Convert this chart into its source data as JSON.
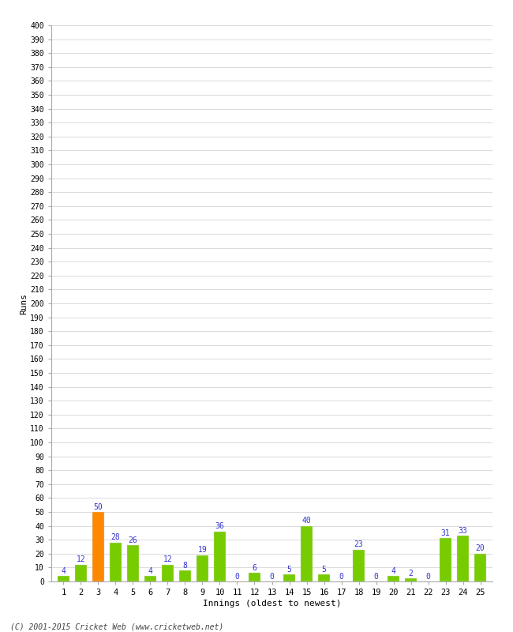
{
  "innings": [
    1,
    2,
    3,
    4,
    5,
    6,
    7,
    8,
    9,
    10,
    11,
    12,
    13,
    14,
    15,
    16,
    17,
    18,
    19,
    20,
    21,
    22,
    23,
    24,
    25
  ],
  "runs": [
    4,
    12,
    50,
    28,
    26,
    4,
    12,
    8,
    19,
    36,
    0,
    6,
    0,
    5,
    40,
    5,
    0,
    23,
    0,
    4,
    2,
    0,
    31,
    33,
    20
  ],
  "bar_colors": [
    "#77cc00",
    "#77cc00",
    "#ff8800",
    "#77cc00",
    "#77cc00",
    "#77cc00",
    "#77cc00",
    "#77cc00",
    "#77cc00",
    "#77cc00",
    "#77cc00",
    "#77cc00",
    "#77cc00",
    "#77cc00",
    "#77cc00",
    "#77cc00",
    "#77cc00",
    "#77cc00",
    "#77cc00",
    "#77cc00",
    "#77cc00",
    "#77cc00",
    "#77cc00",
    "#77cc00",
    "#77cc00"
  ],
  "ylabel": "Runs",
  "xlabel": "Innings (oldest to newest)",
  "ytick_min": 0,
  "ytick_max": 400,
  "ytick_step": 10,
  "ymax": 400,
  "label_color": "#3333cc",
  "bg_color": "#ffffff",
  "grid_color": "#cccccc",
  "footer": "(C) 2001-2015 Cricket Web (www.cricketweb.net)"
}
